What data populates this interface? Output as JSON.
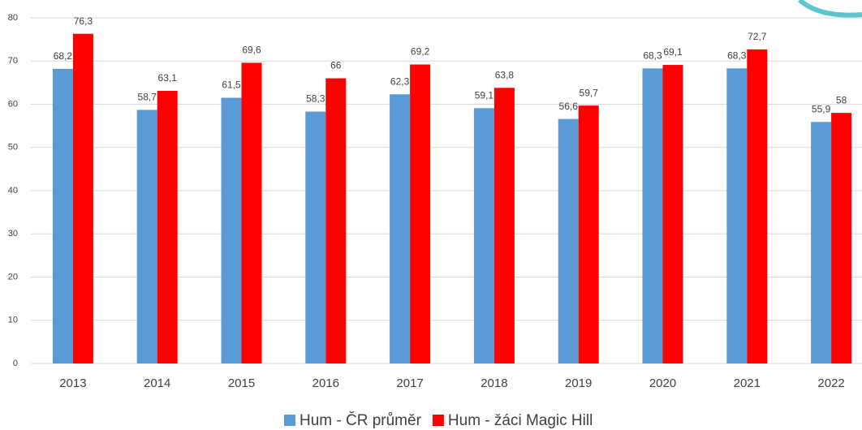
{
  "chart_data": {
    "type": "bar",
    "categories": [
      "2013",
      "2014",
      "2015",
      "2016",
      "2017",
      "2018",
      "2019",
      "2020",
      "2021",
      "2022"
    ],
    "series": [
      {
        "name": "Hum - ČR průměr",
        "color": "#5b9bd5",
        "values": [
          68.2,
          58.7,
          61.5,
          58.3,
          62.3,
          59.1,
          56.6,
          68.3,
          68.3,
          55.9
        ],
        "value_labels": [
          "68,2",
          "58,7",
          "61,5",
          "58,3",
          "62,3",
          "59,1",
          "56,6",
          "68,3",
          "68,3",
          "55,9"
        ]
      },
      {
        "name": "Hum - žáci Magic Hill",
        "color": "#ff0000",
        "values": [
          76.3,
          63.1,
          69.6,
          66,
          69.2,
          63.8,
          59.7,
          69.1,
          72.7,
          58
        ],
        "value_labels": [
          "76,3",
          "63,1",
          "69,6",
          "66",
          "69,2",
          "63,8",
          "59,7",
          "69,1",
          "72,7",
          "58"
        ]
      }
    ],
    "ylim": [
      0,
      80
    ],
    "yticks": [
      0,
      10,
      20,
      30,
      40,
      50,
      60,
      70,
      80
    ],
    "grid": true,
    "legend": "bottom"
  }
}
